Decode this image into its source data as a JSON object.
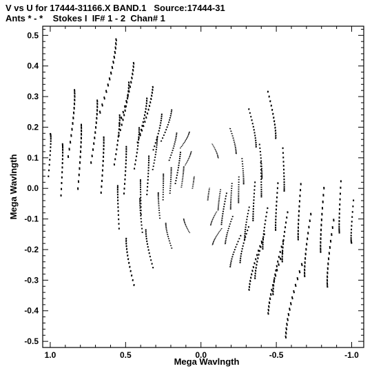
{
  "header": {
    "line1": "V vs U for 17444-31166.X BAND.1   Source:17444-31",
    "line2": "Ants * - *    Stokes I  IF# 1 - 2  Chan# 1"
  },
  "chart_data": {
    "type": "scatter",
    "title": "V vs U for 17444-31166.X BAND.1   Source:17444-31",
    "subtitle": "Ants * - *    Stokes I  IF# 1 - 2  Chan# 1",
    "xlabel": "Mega Wavlngth",
    "ylabel": "Mega Wavlngth",
    "xlim": [
      1.05,
      -1.08
    ],
    "ylim": [
      -0.52,
      0.53
    ],
    "x_ticks": [
      "1.0",
      "0.5",
      "0.0",
      "-0.5",
      "-1.0"
    ],
    "y_ticks": [
      "0.5",
      "0.4",
      "0.3",
      "0.2",
      "0.1",
      "0.0",
      "-0.1",
      "-0.2",
      "-0.3",
      "-0.4",
      "-0.5"
    ],
    "grid": false,
    "marker": "short dashes (uv tracks, symmetric about origin)",
    "baseline_centers": [
      [
        0.3,
        0.12
      ],
      [
        0.42,
        0.14
      ],
      [
        0.55,
        0.17
      ],
      [
        0.7,
        0.2
      ],
      [
        0.85,
        0.23
      ],
      [
        1.0,
        0.13
      ],
      [
        0.2,
        0.03
      ],
      [
        0.35,
        0.05
      ],
      [
        0.5,
        0.07
      ],
      [
        0.65,
        0.09
      ],
      [
        0.8,
        0.12
      ],
      [
        0.92,
        0.08
      ],
      [
        0.1,
        0.16
      ],
      [
        0.22,
        0.21
      ],
      [
        0.35,
        0.26
      ],
      [
        0.48,
        0.32
      ],
      [
        0.6,
        0.38
      ],
      [
        0.15,
        0.07
      ],
      [
        0.08,
        0.1
      ],
      [
        0.18,
        0.14
      ],
      [
        0.28,
        0.19
      ],
      [
        0.38,
        0.23
      ],
      [
        0.5,
        0.27
      ],
      [
        0.05,
        0.02
      ],
      [
        0.12,
        0.04
      ],
      [
        0.25,
        0.01
      ],
      [
        0.4,
        -0.02
      ],
      [
        0.55,
        -0.05
      ],
      [
        -0.1,
        0.12
      ],
      [
        -0.22,
        0.15
      ],
      [
        -0.35,
        0.19
      ],
      [
        -0.48,
        0.23
      ],
      [
        -0.28,
        0.05
      ],
      [
        -0.4,
        0.08
      ]
    ],
    "track_lengths": [
      0.08,
      0.1,
      0.12,
      0.15,
      0.16,
      0.1,
      0.06,
      0.09,
      0.11,
      0.13,
      0.15,
      0.12,
      0.07,
      0.1,
      0.14,
      0.17,
      0.2,
      0.08,
      0.05,
      0.08,
      0.1,
      0.12,
      0.14,
      0.03,
      0.05,
      0.06,
      0.08,
      0.1,
      0.05,
      0.07,
      0.1,
      0.12,
      0.06,
      0.08
    ]
  }
}
